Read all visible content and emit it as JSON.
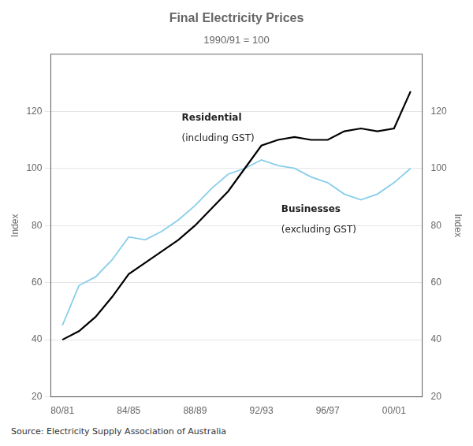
{
  "chart_data": {
    "type": "line",
    "title": "Final Electricity Prices",
    "subtitle": "1990/91 = 100",
    "ylabel": "Index",
    "y2label": "Index",
    "source": "Source: Electricity Supply Association of Australia",
    "x": [
      1980,
      1981,
      1982,
      1983,
      1984,
      1985,
      1986,
      1987,
      1988,
      1989,
      1990,
      1991,
      1992,
      1993,
      1994,
      1995,
      1996,
      1997,
      1998,
      1999,
      2000,
      2001
    ],
    "series": [
      {
        "name": "Residential",
        "color": "#000000",
        "values": [
          40,
          43,
          48,
          55,
          63,
          67,
          71,
          75,
          80,
          86,
          92,
          100,
          108,
          110,
          111,
          110,
          110,
          113,
          114,
          113,
          114,
          127
        ]
      },
      {
        "name": "Businesses",
        "color": "#87CEEB",
        "values": [
          45,
          59,
          62,
          68,
          76,
          75,
          78,
          82,
          87,
          93,
          98,
          100,
          103,
          101,
          100,
          97,
          95,
          91,
          89,
          91,
          95,
          100
        ]
      }
    ],
    "xlim": [
      1979.3,
      2001.7
    ],
    "xticks": [
      {
        "value": 1980,
        "label": "80/81"
      },
      {
        "value": 1984,
        "label": "84/85"
      },
      {
        "value": 1988,
        "label": "88/89"
      },
      {
        "value": 1992,
        "label": "92/93"
      },
      {
        "value": 1996,
        "label": "96/97"
      },
      {
        "value": 2000,
        "label": "00/01"
      }
    ],
    "ylim": [
      20,
      140
    ],
    "yticks": [
      20,
      40,
      60,
      80,
      100,
      120
    ],
    "y2lim": [
      20,
      140
    ],
    "y2ticks": [
      20,
      40,
      60,
      80,
      100,
      120
    ],
    "grid": true,
    "annotations": [
      {
        "text": "Residential",
        "x": 1987.2,
        "y": 116
      },
      {
        "text": "(including GST)",
        "x": 1987.2,
        "y": 112
      },
      {
        "text": "Businesses",
        "x": 1993.2,
        "y": 84
      },
      {
        "text": "(excluding GST)",
        "x": 1993.2,
        "y": 80
      }
    ]
  }
}
